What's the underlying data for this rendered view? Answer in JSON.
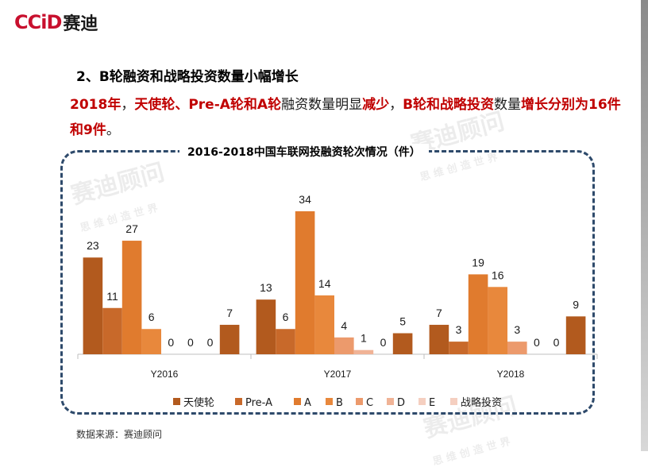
{
  "brand": {
    "logo_latin": "CCiD",
    "logo_cn": "赛迪"
  },
  "watermark": {
    "text": "赛迪顾问",
    "tagline": "思 维 创 造 世 界"
  },
  "heading": {
    "section_title": "2、B轮融资和战略投资数量小幅增长"
  },
  "lead": {
    "p1": "2018年",
    "p2": "，",
    "p3": "天使轮、Pre-A轮和A轮",
    "p4": "融资数量明显",
    "p5": "减少",
    "p6": "，",
    "p7": "B轮和战略投资",
    "p8": "数量",
    "p9": "增长分别为16件和9件",
    "p10": "。"
  },
  "source": "数据来源：赛迪顾问",
  "colors": {
    "accent_red": "#c00000",
    "frame": "#2e4a6b",
    "series": [
      "#b25a1e",
      "#c8692a",
      "#e07b2e",
      "#e8883c",
      "#ec9a6c",
      "#f0b396",
      "#f5cfc0"
    ]
  },
  "chart_data": {
    "type": "bar",
    "title": "2016-2018中国车联网投融资轮次情况（件）",
    "categories": [
      "Y2016",
      "Y2017",
      "Y2018"
    ],
    "series": [
      {
        "name": "天使轮",
        "values": [
          23,
          13,
          7
        ]
      },
      {
        "name": "Pre-A",
        "values": [
          11,
          6,
          3
        ]
      },
      {
        "name": "A",
        "values": [
          27,
          34,
          19
        ]
      },
      {
        "name": "B",
        "values": [
          6,
          14,
          16
        ]
      },
      {
        "name": "C",
        "values": [
          0,
          4,
          3
        ]
      },
      {
        "name": "D",
        "values": [
          0,
          1,
          0
        ]
      },
      {
        "name": "E",
        "values": [
          0,
          0,
          0
        ]
      },
      {
        "name": "战略投资",
        "values": [
          7,
          5,
          9
        ]
      }
    ],
    "ylim": [
      0,
      34
    ],
    "grid": false,
    "legend_position": "bottom"
  }
}
